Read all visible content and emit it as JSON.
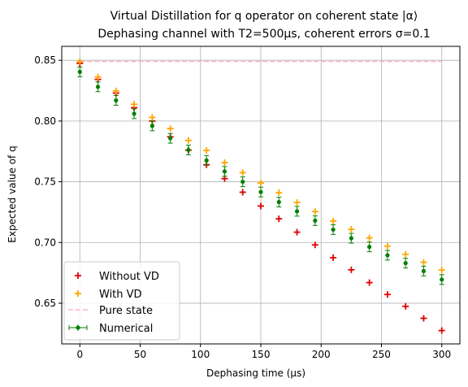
{
  "chart_data": {
    "type": "scatter",
    "title": "Virtual Distillation for q operator on coherent state |α⟩",
    "subtitle": "Dephasing channel with T2=500μs, coherent errors σ=0.1",
    "xlabel": "Dephasing time (μs)",
    "ylabel": "Expected value of q",
    "xlim": [
      -15,
      315
    ],
    "ylim": [
      0.6165,
      0.8615
    ],
    "xticks": [
      0,
      50,
      100,
      150,
      200,
      250,
      300
    ],
    "yticks": [
      0.65,
      0.7,
      0.75,
      0.8,
      0.85
    ],
    "xtick_labels": [
      "0",
      "50",
      "100",
      "150",
      "200",
      "250",
      "300"
    ],
    "ytick_labels": [
      "0.65",
      "0.70",
      "0.75",
      "0.80",
      "0.85"
    ],
    "grid": true,
    "legend_position": "lower-left",
    "x": [
      0,
      15,
      30,
      45,
      60,
      75,
      90,
      105,
      120,
      135,
      150,
      165,
      180,
      195,
      210,
      225,
      240,
      255,
      270,
      285,
      300
    ],
    "series": [
      {
        "name": "Without VD",
        "marker": "plus",
        "color": "#e00000",
        "values": [
          0.8475,
          0.8343,
          0.823,
          0.811,
          0.8,
          0.787,
          0.776,
          0.764,
          0.7526,
          0.7414,
          0.73,
          0.7195,
          0.7085,
          0.698,
          0.6875,
          0.6775,
          0.667,
          0.6572,
          0.6474,
          0.6376,
          0.6275
        ]
      },
      {
        "name": "With VD",
        "marker": "plus",
        "color": "#ffa500",
        "values": [
          0.849,
          0.8363,
          0.8248,
          0.8138,
          0.803,
          0.7938,
          0.784,
          0.7758,
          0.7658,
          0.7575,
          0.749,
          0.741,
          0.733,
          0.7255,
          0.7177,
          0.7108,
          0.7038,
          0.697,
          0.6903,
          0.6837,
          0.6773
        ]
      },
      {
        "name": "Pure state",
        "style": "dashed-line",
        "color": "#ffb6c1",
        "value": 0.849
      },
      {
        "name": "Numerical",
        "marker": "dot-errorbar",
        "color": "#008000",
        "values": [
          0.8405,
          0.8282,
          0.817,
          0.806,
          0.796,
          0.7858,
          0.7762,
          0.7676,
          0.7585,
          0.75,
          0.7416,
          0.7333,
          0.7257,
          0.718,
          0.7106,
          0.7035,
          0.6964,
          0.6895,
          0.683,
          0.6765,
          0.6695
        ],
        "error": [
          0.004,
          0.004,
          0.004,
          0.004,
          0.004,
          0.004,
          0.004,
          0.004,
          0.004,
          0.004,
          0.004,
          0.004,
          0.004,
          0.004,
          0.004,
          0.004,
          0.004,
          0.004,
          0.004,
          0.004,
          0.004
        ]
      }
    ]
  }
}
